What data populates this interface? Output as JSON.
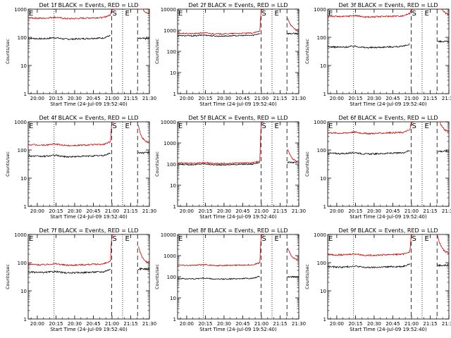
{
  "chart_data": [
    {
      "type": "line",
      "title": "Det 1f BLACK = Events, RED = LLD",
      "xlabel": "Start Time (24-Jul-09 19:52:40)",
      "ylabel": "Counts/sec",
      "ylim": [
        1,
        1000
      ],
      "yticks": [
        "1",
        "10",
        "100",
        "1000"
      ],
      "xticks": [
        "20:00",
        "20:15",
        "20:30",
        "20:45",
        "21:00",
        "21:15",
        "21:30"
      ],
      "markers": [
        "E",
        "S",
        "E"
      ],
      "series": [
        {
          "name": "Events",
          "color": "#000000",
          "pre_level": 90,
          "post_level": 90
        },
        {
          "name": "LLD",
          "color": "#cc0000",
          "pre_level": 480,
          "post_level": 700
        }
      ]
    },
    {
      "type": "line",
      "title": "Det 2f BLACK = Events, RED = LLD",
      "xlabel": "Start Time (24-Jul-09 19:52:40)",
      "ylabel": "Counts/sec",
      "ylim": [
        1,
        10000
      ],
      "yticks": [
        "1",
        "10",
        "100",
        "1000",
        "10000"
      ],
      "xticks": [
        "20:00",
        "20:15",
        "20:30",
        "20:45",
        "21:00",
        "21:15",
        "21:30"
      ],
      "markers": [
        "E",
        "S",
        "E"
      ],
      "series": [
        {
          "name": "Events",
          "color": "#000000",
          "pre_level": 550,
          "post_level": 700
        },
        {
          "name": "LLD",
          "color": "#cc0000",
          "pre_level": 700,
          "post_level": 1000
        }
      ]
    },
    {
      "type": "line",
      "title": "Det 3f BLACK = Events, RED = LLD",
      "xlabel": "Start Time (24-Jul-09 19:52:40)",
      "ylabel": "Counts/sec",
      "ylim": [
        1,
        1000
      ],
      "yticks": [
        "1",
        "10",
        "100",
        "1000"
      ],
      "xticks": [
        "20:00",
        "20:15",
        "20:30",
        "20:45",
        "21:00",
        "21:15",
        "21:30"
      ],
      "markers": [
        "E",
        "S",
        "E"
      ],
      "series": [
        {
          "name": "Events",
          "color": "#000000",
          "pre_level": 45,
          "post_level": 70
        },
        {
          "name": "LLD",
          "color": "#cc0000",
          "pre_level": 550,
          "post_level": 650
        }
      ]
    },
    {
      "type": "line",
      "title": "Det 4f BLACK = Events, RED = LLD",
      "xlabel": "Start Time (24-Jul-09 19:52:40)",
      "ylabel": "Counts/sec",
      "ylim": [
        1,
        1000
      ],
      "yticks": [
        "1",
        "10",
        "100",
        "1000"
      ],
      "xticks": [
        "20:00",
        "20:15",
        "20:30",
        "20:45",
        "21:00",
        "21:15",
        "21:30"
      ],
      "markers": [
        "E",
        "S",
        "E"
      ],
      "series": [
        {
          "name": "Events",
          "color": "#000000",
          "pre_level": 60,
          "post_level": 80
        },
        {
          "name": "LLD",
          "color": "#cc0000",
          "pre_level": 150,
          "post_level": 180
        }
      ]
    },
    {
      "type": "line",
      "title": "Det 5f BLACK = Events, RED = LLD",
      "xlabel": "Start Time (24-Jul-09 19:52:40)",
      "ylabel": "Counts/sec",
      "ylim": [
        1,
        10000
      ],
      "yticks": [
        "1",
        "10",
        "100",
        "1000",
        "10000"
      ],
      "xticks": [
        "20:00",
        "20:15",
        "20:30",
        "20:45",
        "21:00",
        "21:15",
        "21:30"
      ],
      "markers": [
        "E",
        "S",
        "E"
      ],
      "series": [
        {
          "name": "Events",
          "color": "#000000",
          "pre_level": 95,
          "post_level": 120
        },
        {
          "name": "LLD",
          "color": "#cc0000",
          "pre_level": 110,
          "post_level": 130
        }
      ]
    },
    {
      "type": "line",
      "title": "Det 6f BLACK = Events, RED = LLD",
      "xlabel": "Start Time (24-Jul-09 19:52:40)",
      "ylabel": "Counts/sec",
      "ylim": [
        1,
        1000
      ],
      "yticks": [
        "1",
        "10",
        "100",
        "1000"
      ],
      "xticks": [
        "20:00",
        "20:15",
        "20:30",
        "20:45",
        "21:00",
        "21:15",
        "21:30"
      ],
      "markers": [
        "E",
        "S",
        "E"
      ],
      "series": [
        {
          "name": "Events",
          "color": "#000000",
          "pre_level": 75,
          "post_level": 90
        },
        {
          "name": "LLD",
          "color": "#cc0000",
          "pre_level": 400,
          "post_level": 450
        }
      ]
    },
    {
      "type": "line",
      "title": "Det 7f BLACK = Events, RED = LLD",
      "xlabel": "Start Time (24-Jul-09 19:52:40)",
      "ylabel": "Counts/sec",
      "ylim": [
        1,
        1000
      ],
      "yticks": [
        "1",
        "10",
        "100",
        "1000"
      ],
      "xticks": [
        "20:00",
        "20:15",
        "20:30",
        "20:45",
        "21:00",
        "21:15",
        "21:30"
      ],
      "markers": [
        "E",
        "S",
        "E"
      ],
      "series": [
        {
          "name": "Events",
          "color": "#000000",
          "pre_level": 45,
          "post_level": 60
        },
        {
          "name": "LLD",
          "color": "#cc0000",
          "pre_level": 85,
          "post_level": 100
        }
      ]
    },
    {
      "type": "line",
      "title": "Det 8f BLACK = Events, RED = LLD",
      "xlabel": "Start Time (24-Jul-09 19:52:40)",
      "ylabel": "Counts/sec",
      "ylim": [
        1,
        10000
      ],
      "yticks": [
        "1",
        "10",
        "100",
        "1000",
        "10000"
      ],
      "xticks": [
        "20:00",
        "20:15",
        "20:30",
        "20:45",
        "21:00",
        "21:15",
        "21:30"
      ],
      "markers": [
        "E",
        "S",
        "E"
      ],
      "series": [
        {
          "name": "Events",
          "color": "#000000",
          "pre_level": 80,
          "post_level": 100
        },
        {
          "name": "LLD",
          "color": "#cc0000",
          "pre_level": 350,
          "post_level": 600
        }
      ]
    },
    {
      "type": "line",
      "title": "Det 9f BLACK = Events, RED = LLD",
      "xlabel": "Start Time (24-Jul-09 19:52:40)",
      "ylabel": "Counts/sec",
      "ylim": [
        1,
        1000
      ],
      "yticks": [
        "1",
        "10",
        "100",
        "1000"
      ],
      "xticks": [
        "20:00",
        "20:15",
        "20:30",
        "20:45",
        "21:00",
        "21:15",
        "21:30"
      ],
      "markers": [
        "E",
        "S",
        "E"
      ],
      "series": [
        {
          "name": "Events",
          "color": "#000000",
          "pre_level": 70,
          "post_level": 80
        },
        {
          "name": "LLD",
          "color": "#cc0000",
          "pre_level": 190,
          "post_level": 220
        }
      ]
    }
  ]
}
